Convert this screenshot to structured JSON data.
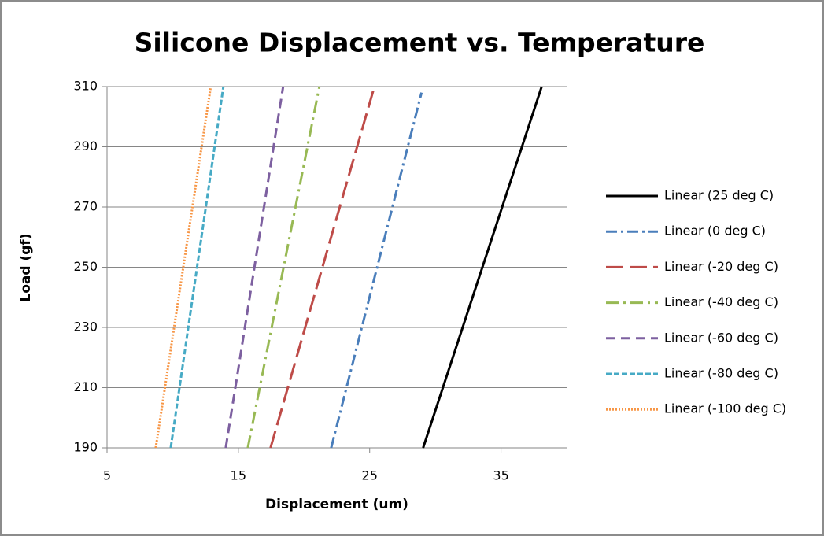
{
  "chart_data": {
    "type": "line",
    "title": "Silicone Displacement vs. Temperature",
    "x_label": "Displacement (um)",
    "y_label": "Load (gf)",
    "xlim": [
      5,
      40
    ],
    "xticks": [
      5,
      15,
      25,
      35
    ],
    "ylim": [
      190,
      310
    ],
    "yticks": [
      190,
      210,
      230,
      250,
      270,
      290,
      310
    ],
    "grid": true,
    "legend": "right",
    "series": [
      {
        "name": "Linear (25 deg C)",
        "color": "#000000",
        "dash": "solid",
        "x": [
          29.07,
          38.1
        ],
        "values": [
          190,
          310
        ]
      },
      {
        "name": "Linear (0 deg C)",
        "color": "#4a7ebb",
        "dash": "dash-dot",
        "x": [
          22.07,
          28.95
        ],
        "values": [
          190,
          308
        ]
      },
      {
        "name": "Linear (-20 deg C)",
        "color": "#be4b48",
        "dash": "long-dash",
        "x": [
          17.45,
          25.36
        ],
        "values": [
          190,
          310
        ]
      },
      {
        "name": "Linear (-40 deg C)",
        "color": "#98b954",
        "dash": "long-dash-dot",
        "x": [
          15.72,
          21.17
        ],
        "values": [
          190,
          310
        ]
      },
      {
        "name": "Linear (-60 deg C)",
        "color": "#7d60a0",
        "dash": "dash",
        "x": [
          14.04,
          18.41
        ],
        "values": [
          190,
          310
        ]
      },
      {
        "name": "Linear (-80 deg C)",
        "color": "#46aac5",
        "dash": "short-dash",
        "x": [
          9.85,
          13.86
        ],
        "values": [
          190,
          310
        ]
      },
      {
        "name": "Linear (-100 deg C)",
        "color": "#f79646",
        "dash": "dot",
        "x": [
          8.71,
          12.9
        ],
        "values": [
          190,
          310
        ]
      }
    ]
  }
}
